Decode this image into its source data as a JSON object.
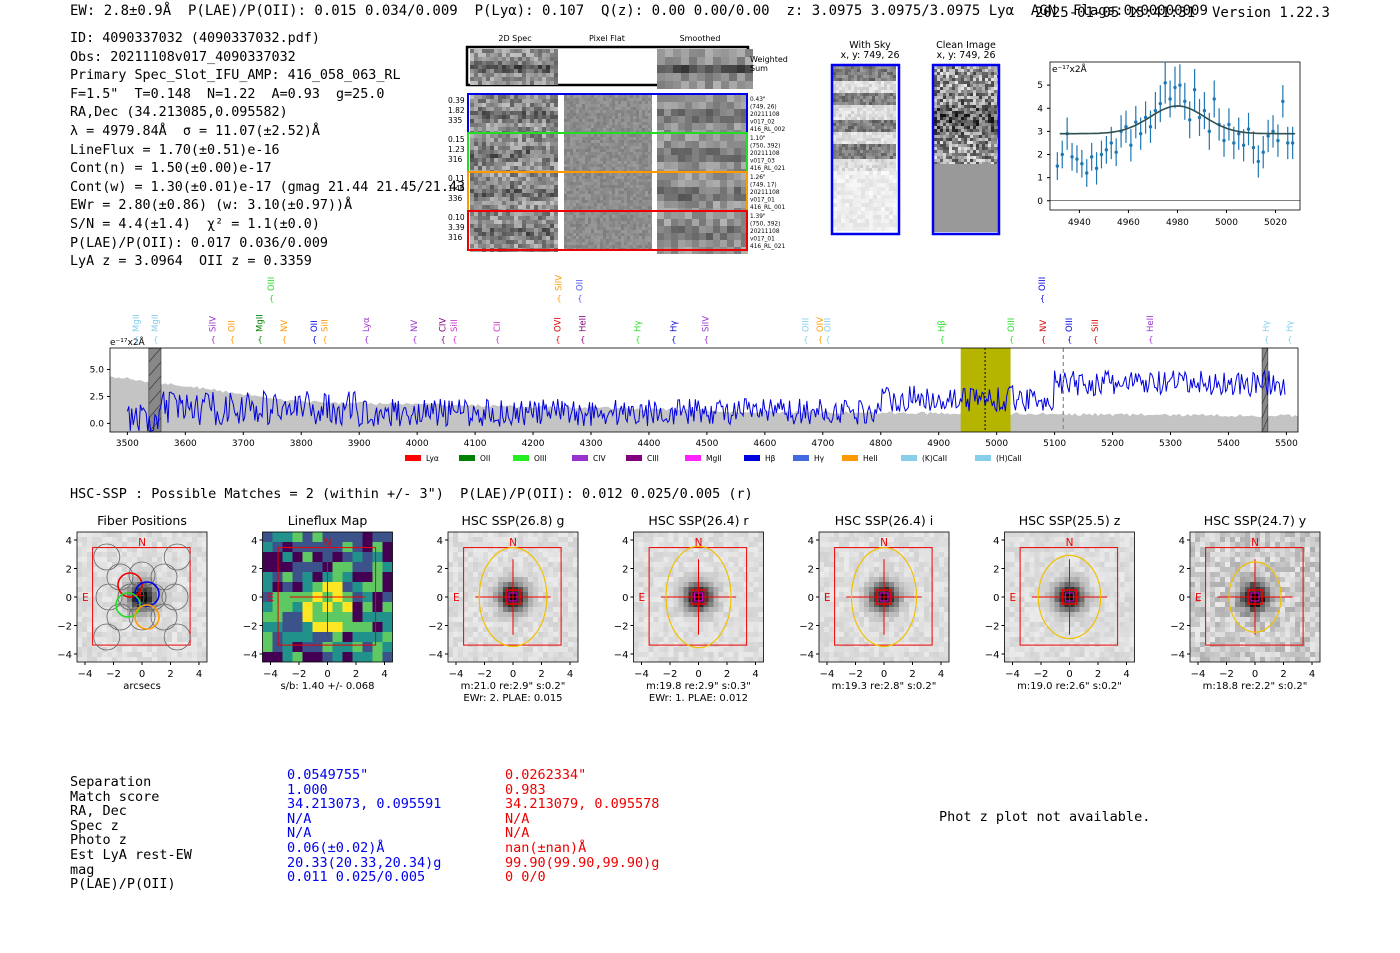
{
  "header": {
    "line": "EW: 2.8±0.9Å  P(LAE)/P(OII): 0.015 0.034/0.009  P(Lyα): 0.107  Q(z): 0.00 0.00/0.00  z: 3.0975 3.0975/3.0975 Lyα  AGN  Flags:0x00000009",
    "timestamp": "2025-01-05 15:41:31  Version 1.22.3"
  },
  "info_lines": [
    "ID: 4090337032 (4090337032.pdf)",
    "Obs: 20211108v017_4090337032",
    "Primary Spec_Slot_IFU_AMP: 416_058_063_RL",
    "F=1.5\"  T=0.148  N=1.22  A=0.93  g=25.0",
    "RA,Dec (34.213085,0.095582)",
    "λ = 4979.84Å  σ = 11.07(±2.52)Å",
    "LineFlux = 1.70(±0.51)e-16",
    "Cont(n) = 1.50(±0.00)e-17",
    "Cont(w) = 1.30(±0.01)e-17 (gmag 21.44 21.45/21.43 *)",
    "EWr = 2.80(±0.86) (w: 3.10(±0.97))Å",
    "S/N = 4.4(±1.4)  χ² = 1.1(±0.0)",
    "P(LAE)/P(OII): 0.017 0.036/0.009",
    "LyA z = 3.0964  OII z = 0.3359"
  ],
  "cutouts": {
    "col_headers": [
      "2D Spec",
      "Pixel Flat",
      "Smoothed"
    ],
    "weighted_label": "Weighted Sum",
    "rows": [
      {
        "left": [
          "0.39",
          "1.82",
          "335"
        ],
        "right": [
          "0.43\"",
          "(749, 26)",
          "20211108",
          "v017_02",
          "416_RL_002"
        ],
        "color": "#0000ee"
      },
      {
        "left": [
          "0.15",
          "1.23",
          "316"
        ],
        "right": [
          "1.10\"",
          "(750, 392)",
          "20211108",
          "v017_03",
          "416_RL_021"
        ],
        "color": "#22dd22"
      },
      {
        "left": [
          "0.11",
          "1.46",
          "336"
        ],
        "right": [
          "1.26\"",
          "(749, 17)",
          "20211108",
          "v017_01",
          "416_RL_001"
        ],
        "color": "#ff9900"
      },
      {
        "left": [
          "0.10",
          "3.39",
          "316"
        ],
        "right": [
          "1.39\"",
          "(750, 392)",
          "20211108",
          "v017_01",
          "416_RL_021"
        ],
        "color": "#ee0000"
      }
    ]
  },
  "sky": {
    "with_sky_title": "With Sky",
    "with_sky_coords": "x, y: 749, 26",
    "clean_title": "Clean Image",
    "clean_coords": "x, y: 749, 26"
  },
  "fit_plot": {
    "ylabel": "e⁻¹⁷x2Å",
    "x_ticks": [
      4940,
      4960,
      4980,
      5000,
      5020
    ],
    "y_ticks": [
      0,
      1,
      2,
      3,
      4,
      5
    ],
    "xlim": [
      4928,
      5030
    ],
    "ylim": [
      -0.4,
      6.0
    ],
    "model": {
      "baseline": 2.9,
      "amplitude": 1.2,
      "center": 4980,
      "sigma": 11.07
    },
    "line_color": "#2f4f4f",
    "point_color": "#1f77b4",
    "points_x": [
      4931,
      4933,
      4935,
      4937,
      4939,
      4941,
      4943,
      4945,
      4947,
      4949,
      4951,
      4953,
      4955,
      4957,
      4959,
      4961,
      4963,
      4965,
      4967,
      4969,
      4971,
      4973,
      4975,
      4977,
      4979,
      4981,
      4983,
      4985,
      4987,
      4989,
      4991,
      4993,
      4995,
      4997,
      4999,
      5001,
      5003,
      5005,
      5007,
      5009,
      5011,
      5013,
      5015,
      5017,
      5019,
      5021,
      5023,
      5025,
      5027
    ],
    "points_y": [
      1.5,
      2.0,
      2.9,
      1.9,
      1.8,
      1.6,
      1.2,
      1.9,
      1.4,
      2.0,
      2.2,
      2.5,
      2.1,
      3.0,
      3.2,
      2.4,
      3.4,
      2.9,
      3.6,
      3.2,
      3.9,
      4.2,
      5.1,
      4.4,
      4.9,
      5.0,
      4.3,
      3.5,
      4.8,
      3.6,
      3.9,
      3.0,
      4.4,
      3.3,
      2.6,
      3.3,
      2.5,
      2.9,
      2.4,
      3.1,
      2.3,
      1.7,
      2.1,
      2.8,
      3.0,
      2.6,
      4.3,
      2.5,
      2.5
    ],
    "err": [
      0.6,
      0.6,
      0.7,
      0.6,
      0.6,
      0.6,
      0.6,
      0.6,
      0.7,
      0.6,
      0.6,
      0.7,
      0.6,
      0.7,
      0.7,
      0.7,
      0.7,
      0.7,
      0.7,
      0.7,
      0.8,
      0.8,
      0.9,
      0.8,
      0.9,
      0.9,
      0.8,
      0.8,
      0.9,
      0.8,
      0.8,
      0.8,
      0.8,
      0.7,
      0.7,
      0.7,
      0.7,
      0.7,
      0.7,
      0.7,
      0.7,
      0.7,
      0.7,
      0.7,
      0.7,
      0.7,
      0.7,
      0.7,
      0.7
    ]
  },
  "chart_data": {
    "type": "line",
    "title": "",
    "xlabel": "",
    "ylabel": "e⁻¹⁷x2Å",
    "xlim": [
      3470,
      5520
    ],
    "ylim": [
      -0.8,
      7.0
    ],
    "x_ticks": [
      3500,
      3600,
      3700,
      3800,
      3900,
      4000,
      4100,
      4200,
      4300,
      4400,
      4500,
      4600,
      4700,
      4800,
      4900,
      5000,
      5100,
      5200,
      5300,
      5400,
      5500
    ],
    "y_ticks": [
      "0.0",
      "2.5",
      "5.0"
    ],
    "y_tick_values": [
      0.0,
      2.5,
      5.0
    ],
    "series": [
      {
        "name": "spectrum",
        "color": "#0000dd",
        "segments": [
          {
            "x0": 3500,
            "x1": 3900,
            "mean": 1.4,
            "amp": 1.6
          },
          {
            "x0": 3900,
            "x1": 4400,
            "mean": 1.0,
            "amp": 1.3
          },
          {
            "x0": 4400,
            "x1": 4800,
            "mean": 1.1,
            "amp": 1.2
          },
          {
            "x0": 4800,
            "x1": 5100,
            "mean": 2.3,
            "amp": 1.2
          },
          {
            "x0": 5100,
            "x1": 5500,
            "mean": 3.7,
            "amp": 1.2
          }
        ]
      },
      {
        "name": "noise",
        "color": "#bbbbbb"
      }
    ],
    "highlight_band": [
      4938,
      5024
    ],
    "highlight_color": "#b5b500",
    "line_center": 4980,
    "dashed_marker": 5115,
    "hatched_regions": [
      [
        3537,
        3558
      ],
      [
        5458,
        5468
      ]
    ],
    "line_markers": [
      {
        "label": "MgII",
        "x": 3515,
        "color": "#87ceeb",
        "row": 1
      },
      {
        "label": "MgII",
        "x": 3548,
        "color": "#87ceeb",
        "row": 1
      },
      {
        "label": "SiIV",
        "x": 3647,
        "color": "#9932cc",
        "row": 1
      },
      {
        "label": "OII",
        "x": 3680,
        "color": "#ff9900",
        "row": 1
      },
      {
        "label": "MgII",
        "x": 3728,
        "color": "#008000",
        "row": 1
      },
      {
        "label": "OIII",
        "x": 3748,
        "color": "#22dd22",
        "row": 0
      },
      {
        "label": "NV",
        "x": 3770,
        "color": "#ff9900",
        "row": 1
      },
      {
        "label": "OII",
        "x": 3822,
        "color": "#0000dd",
        "row": 1
      },
      {
        "label": "SiII",
        "x": 3840,
        "color": "#ff9900",
        "row": 1
      },
      {
        "label": "Lyα",
        "x": 3912,
        "color": "#9932cc",
        "row": 1
      },
      {
        "label": "NV",
        "x": 3995,
        "color": "#9932cc",
        "row": 1
      },
      {
        "label": "CIV",
        "x": 4044,
        "color": "#800080",
        "row": 1
      },
      {
        "label": "SiII",
        "x": 4064,
        "color": "#cc33cc",
        "row": 1
      },
      {
        "label": "CII",
        "x": 4138,
        "color": "#cc33cc",
        "row": 1
      },
      {
        "label": "SiIV",
        "x": 4244,
        "color": "#ff9900",
        "row": 0
      },
      {
        "label": "OII",
        "x": 4280,
        "color": "#5555ff",
        "row": 0
      },
      {
        "label": "OVI",
        "x": 4242,
        "color": "#dd0000",
        "row": 1
      },
      {
        "label": "HeII",
        "x": 4285,
        "color": "#800080",
        "row": 1
      },
      {
        "label": "Hγ",
        "x": 4380,
        "color": "#22dd22",
        "row": 1
      },
      {
        "label": "Hγ",
        "x": 4442,
        "color": "#0000dd",
        "row": 1
      },
      {
        "label": "SiIV",
        "x": 4498,
        "color": "#9932cc",
        "row": 1
      },
      {
        "label": "OIII",
        "x": 4670,
        "color": "#87ceeb",
        "row": 1
      },
      {
        "label": "OIV",
        "x": 4695,
        "color": "#ff9900",
        "row": 1
      },
      {
        "label": "OIII",
        "x": 4708,
        "color": "#87ceeb",
        "row": 1
      },
      {
        "label": "Hβ",
        "x": 4905,
        "color": "#22dd22",
        "row": 1
      },
      {
        "label": "OIII",
        "x": 5025,
        "color": "#22dd22",
        "row": 1
      },
      {
        "label": "NV",
        "x": 5080,
        "color": "#dd0000",
        "row": 1
      },
      {
        "label": "OIII",
        "x": 5078,
        "color": "#0000dd",
        "row": 0
      },
      {
        "label": "OIII",
        "x": 5125,
        "color": "#0000dd",
        "row": 1
      },
      {
        "label": "SiII",
        "x": 5170,
        "color": "#dd0000",
        "row": 1
      },
      {
        "label": "HeII",
        "x": 5265,
        "color": "#9932cc",
        "row": 1
      },
      {
        "label": "Hγ",
        "x": 5465,
        "color": "#87ceeb",
        "row": 1
      },
      {
        "label": "Hγ",
        "x": 5505,
        "color": "#87ceeb",
        "row": 1
      }
    ],
    "legend": [
      {
        "label": "Lyα",
        "color": "#ff0000"
      },
      {
        "label": "OII",
        "color": "#008000"
      },
      {
        "label": "OIII",
        "color": "#22ee22"
      },
      {
        "label": "CIV",
        "color": "#9932cc"
      },
      {
        "label": "CIII",
        "color": "#800080"
      },
      {
        "label": "MgII",
        "color": "#ff22ff"
      },
      {
        "label": "Hβ",
        "color": "#0000dd"
      },
      {
        "label": "Hγ",
        "color": "#4169e1"
      },
      {
        "label": "HeII",
        "color": "#ff9900"
      },
      {
        "label": "(K)CaII",
        "color": "#87ceeb"
      },
      {
        "label": "(H)CaII",
        "color": "#87ceeb"
      }
    ]
  },
  "hsc": {
    "header": "HSC-SSP : Possible Matches = 2 (within +/- 3\")  P(LAE)/P(OII): 0.012 0.025/0.005 (r)",
    "panels": [
      {
        "title": "Fiber Positions",
        "xlabel": "arcsecs",
        "sub": ""
      },
      {
        "title": "Lineflux Map",
        "xlabel": "s/b: 1.40 +/- 0.068",
        "sub": ""
      },
      {
        "title": "HSC SSP(26.8) g",
        "xlabel": "m:21.0  re:2.9\"  s:0.2\"",
        "sub": "EWr: 2. PLAE: 0.015"
      },
      {
        "title": "HSC SSP(26.4) r",
        "xlabel": "m:19.8  re:2.9\"  s:0.3\"",
        "sub": "EWr: 1. PLAE: 0.012"
      },
      {
        "title": "HSC SSP(26.4) i",
        "xlabel": "m:19.3  re:2.8\"  s:0.2\"",
        "sub": ""
      },
      {
        "title": "HSC SSP(25.5) z",
        "xlabel": "m:19.0  re:2.6\"  s:0.2\"",
        "sub": ""
      },
      {
        "title": "HSC SSP(24.7) y",
        "xlabel": "m:18.8  re:2.2\"  s:0.2\"",
        "sub": ""
      }
    ],
    "tick_labels": [
      "4",
      "2",
      "0",
      "−2",
      "−4"
    ],
    "compass_n": "N",
    "compass_e": "E"
  },
  "matches": {
    "labels": [
      "Separation",
      "Match score",
      "RA, Dec",
      "Spec z",
      "Photo z",
      "Est LyA rest-EW",
      "mag",
      "P(LAE)/P(OII)"
    ],
    "a": [
      "0.0549755\"",
      "1.000",
      "34.213073, 0.095591",
      "N/A",
      "N/A",
      "0.06(±0.02)Å",
      "20.33(20.33,20.34)g",
      "0.011 0.025/0.005"
    ],
    "b": [
      "0.0262334\"",
      "0.983",
      "34.213079, 0.095578",
      "N/A",
      "N/A",
      "nan(±nan)Å",
      "99.90(99.90,99.90)g",
      "0 0/0"
    ]
  },
  "photz_msg": "Phot z plot not available."
}
